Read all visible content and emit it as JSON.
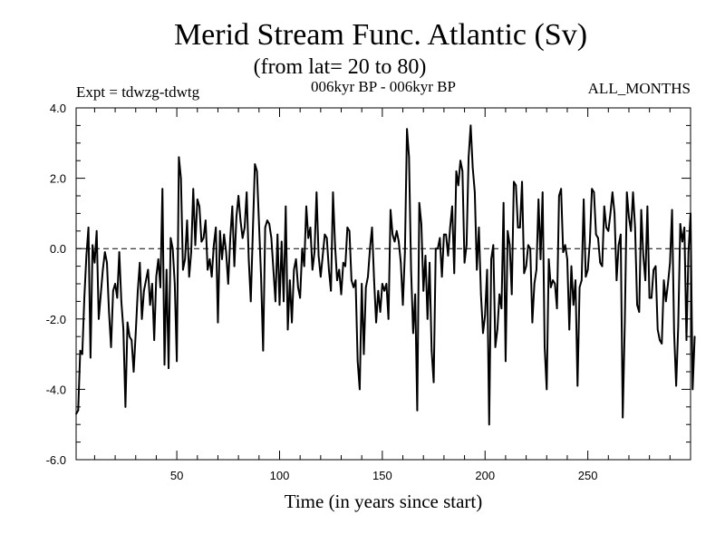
{
  "chart_data": {
    "type": "line",
    "title": "Merid Stream Func. Atlantic (Sv)",
    "subtitle": "(from lat= 20 to 80)",
    "experiment_label": "Expt = tdwzg-tdwtg",
    "period_label": "006kyr BP - 006kyr BP",
    "months_label": "ALL_MONTHS",
    "xlabel": "Time (in years since start)",
    "ylabel": "",
    "xlim": [
      1,
      300
    ],
    "ylim": [
      -6.0,
      4.0
    ],
    "x_ticks": [
      50,
      100,
      150,
      200,
      250
    ],
    "x_tick_labels": [
      "50",
      "100",
      "150",
      "200",
      "250"
    ],
    "y_ticks": [
      -6,
      -4,
      -2,
      0,
      2,
      4
    ],
    "y_tick_labels": [
      "-6.0",
      "-4.0",
      "-2.0",
      "0.0",
      "2.0",
      "4.0"
    ],
    "reference_line": 0.0,
    "series": [
      {
        "name": "tdwzg-tdwtg",
        "x_start": 1,
        "x_step": 1,
        "values": [
          -4.7,
          -4.6,
          -2.9,
          -3.0,
          -1.4,
          -0.2,
          0.6,
          -3.1,
          0.1,
          -0.4,
          0.5,
          -2.0,
          -1.3,
          -0.6,
          -0.1,
          -0.4,
          -1.8,
          -2.8,
          -1.2,
          -1.0,
          -1.4,
          -0.1,
          -1.5,
          -2.3,
          -4.5,
          -2.1,
          -2.5,
          -2.6,
          -3.5,
          -2.4,
          -1.2,
          -0.4,
          -2.0,
          -1.2,
          -0.9,
          -0.6,
          -1.6,
          -1.0,
          -2.6,
          -0.8,
          -0.3,
          -1.1,
          1.7,
          -3.3,
          -0.6,
          -3.4,
          0.3,
          0.0,
          -1.0,
          -3.2,
          2.6,
          2.0,
          -0.6,
          -0.3,
          0.8,
          -0.8,
          -0.1,
          1.7,
          0.1,
          1.4,
          1.2,
          0.2,
          0.3,
          0.8,
          -0.6,
          -0.3,
          -0.8,
          0.1,
          0.6,
          -2.1,
          0.5,
          -0.3,
          0.4,
          -0.1,
          -1.0,
          0.3,
          1.2,
          -0.5,
          0.9,
          1.5,
          0.8,
          0.3,
          0.6,
          1.6,
          -0.3,
          -1.5,
          0.5,
          2.4,
          2.2,
          0.7,
          -0.8,
          -2.9,
          0.6,
          0.8,
          0.7,
          0.3,
          -0.6,
          -1.5,
          0.4,
          -1.6,
          0.2,
          -1.5,
          1.2,
          -2.3,
          -0.9,
          -2.1,
          -0.6,
          -0.3,
          -1.1,
          -1.4,
          0.0,
          -0.5,
          1.2,
          0.3,
          0.6,
          -0.6,
          -0.1,
          1.6,
          -0.2,
          -0.8,
          -0.2,
          0.4,
          0.3,
          -0.6,
          -1.2,
          1.6,
          0.1,
          -0.9,
          -0.6,
          -1.3,
          -0.4,
          -0.5,
          0.6,
          0.5,
          -0.9,
          -1.1,
          -0.9,
          -3.2,
          -4.0,
          -1.0,
          -3.0,
          -1.1,
          -0.8,
          0.0,
          0.6,
          -0.9,
          -2.1,
          -1.2,
          -1.8,
          -1.0,
          -1.2,
          -1.0,
          -2.0,
          1.1,
          0.4,
          0.2,
          0.5,
          0.2,
          -0.4,
          -1.6,
          -0.1,
          3.4,
          2.6,
          -0.6,
          -2.4,
          -1.3,
          -4.6,
          1.3,
          0.7,
          -1.2,
          -0.2,
          -2.0,
          -0.4,
          -2.9,
          -3.8,
          0.0,
          0.0,
          0.3,
          -0.8,
          0.4,
          0.4,
          -0.2,
          0.6,
          1.2,
          -0.7,
          2.2,
          1.8,
          2.5,
          2.2,
          -0.4,
          0.1,
          2.6,
          3.5,
          2.3,
          1.6,
          -0.6,
          0.6,
          -1.3,
          -2.4,
          -1.9,
          -0.6,
          -5.0,
          -0.3,
          0.1,
          -2.8,
          -2.3,
          -1.3,
          -1.7,
          1.3,
          -3.2,
          0.5,
          0.1,
          -1.3,
          1.9,
          1.8,
          0.6,
          0.6,
          1.9,
          -0.7,
          -0.5,
          0.1,
          0.0,
          -2.1,
          -1.0,
          -0.6,
          1.4,
          -0.3,
          1.6,
          -2.8,
          -4.0,
          -0.3,
          -1.1,
          -0.9,
          -1.0,
          -1.7,
          1.5,
          1.7,
          -0.1,
          0.1,
          -0.3,
          -2.3,
          -0.5,
          -1.6,
          -0.9,
          -3.9,
          -1.1,
          -0.9,
          1.4,
          -0.8,
          -0.6,
          0.2,
          1.7,
          1.6,
          0.4,
          0.3,
          -0.4,
          -0.5,
          1.2,
          0.6,
          0.5,
          1.0,
          1.6,
          1.0,
          -0.9,
          0.1,
          0.4,
          -4.8,
          -2.1,
          1.6,
          0.9,
          0.5,
          1.6,
          0.6,
          -1.6,
          -1.8,
          1.1,
          -0.2,
          -0.9,
          1.2,
          -1.4,
          -1.4,
          -0.6,
          -0.5,
          -2.3,
          -2.6,
          -2.7,
          -0.9,
          -1.5,
          -1.0,
          -0.4,
          1.1,
          -2.4,
          -3.9,
          -2.2,
          0.7,
          0.2,
          0.6,
          -2.6,
          -0.1,
          1.0,
          -4.0,
          -2.5
        ]
      }
    ]
  }
}
